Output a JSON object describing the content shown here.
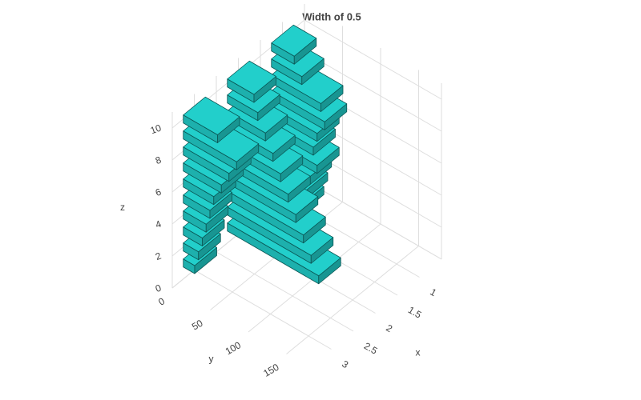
{
  "chart_data": {
    "type": "bar3d",
    "title": "Width of 0.5",
    "x_label": "x",
    "y_label": "y",
    "z_label": "z",
    "x": [
      1,
      1,
      1,
      1,
      1,
      1,
      1,
      1,
      1,
      1,
      2,
      2,
      2,
      2,
      2,
      2,
      2,
      2,
      2,
      2,
      3,
      3,
      3,
      3,
      3,
      3,
      3,
      3,
      3,
      3
    ],
    "z": [
      1,
      2,
      3,
      4,
      5,
      6,
      7,
      8,
      9,
      10,
      1,
      2,
      3,
      4,
      5,
      6,
      7,
      8,
      9,
      10,
      1,
      2,
      3,
      4,
      5,
      6,
      7,
      8,
      9,
      10
    ],
    "values": [
      40,
      45,
      50,
      60,
      55,
      60,
      70,
      65,
      40,
      30,
      120,
      110,
      100,
      90,
      80,
      70,
      60,
      50,
      40,
      35,
      15,
      20,
      25,
      30,
      35,
      40,
      50,
      60,
      70,
      45
    ],
    "color": "#22cfcb",
    "xlim": [
      0.5,
      3.5
    ],
    "xticks": [
      1,
      1.5,
      2,
      2.5,
      3
    ],
    "ylim": [
      0,
      180
    ],
    "yticks": [
      0,
      50,
      100,
      150
    ],
    "zlim": [
      0,
      11
    ],
    "zticks": [
      0,
      2,
      4,
      6,
      8,
      10
    ],
    "grid": true
  }
}
